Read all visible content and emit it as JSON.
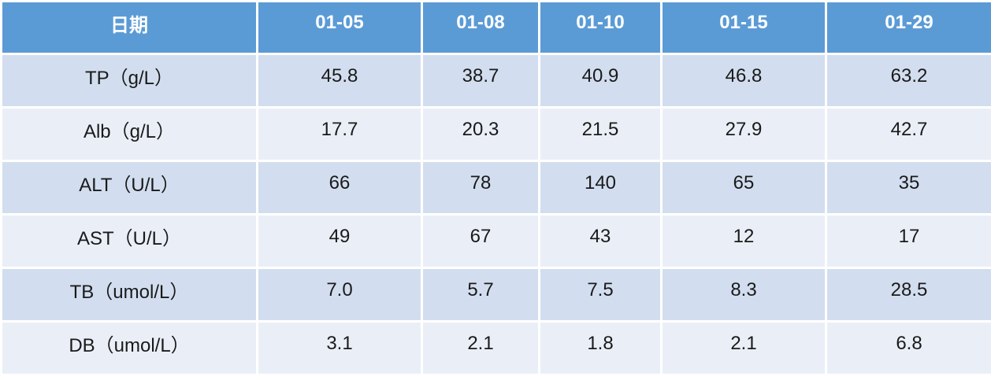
{
  "table": {
    "header": [
      "日期",
      "01-05",
      "01-08",
      "01-10",
      "01-15",
      "01-29"
    ],
    "rows": [
      [
        "TP（g/L）",
        "45.8",
        "38.7",
        "40.9",
        "46.8",
        "63.2"
      ],
      [
        "Alb（g/L）",
        "17.7",
        "20.3",
        "21.5",
        "27.9",
        "42.7"
      ],
      [
        "ALT（U/L）",
        "66",
        "78",
        "140",
        "65",
        "35"
      ],
      [
        "AST（U/L）",
        "49",
        "67",
        "43",
        "12",
        "17"
      ],
      [
        "TB（umol/L）",
        "7.0",
        "5.7",
        "7.5",
        "8.3",
        "28.5"
      ],
      [
        "DB（umol/L）",
        "3.1",
        "2.1",
        "1.8",
        "2.1",
        "6.8"
      ]
    ]
  }
}
